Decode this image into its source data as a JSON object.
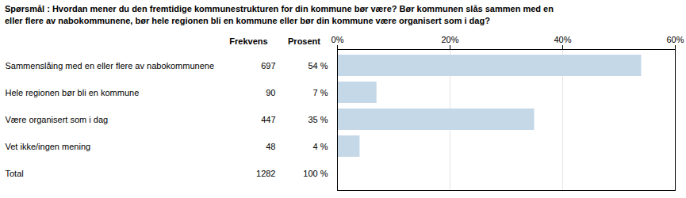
{
  "chart_data": {
    "type": "bar",
    "orientation": "horizontal",
    "title": "Spørsmål : Hvordan mener du den fremtidige kommunestrukturen for din kommune bør være? Bør kommunen slås sammen med en\neller flere av nabokommunene, bør hele regionen bli en kommune eller bør din kommune være organisert som i dag?",
    "categories": [
      "Sammenslåing med en eller flere av nabokommunene",
      "Hele regionen bør bli en kommune",
      "Være organisert som i dag",
      "Vet ikke/ingen mening"
    ],
    "values": [
      54,
      7,
      35,
      4
    ],
    "value_labels": [
      "54 %",
      "7 %",
      "35 %",
      "4 %"
    ],
    "frequencies": [
      697,
      90,
      447,
      48
    ],
    "column_headers": [
      "Frekvens",
      "Prosent"
    ],
    "total_label": "Total",
    "total_frequency": 1282,
    "total_value": 100,
    "total_value_label": "100 %",
    "color": "#c5d8e8",
    "xlim": [
      0,
      60
    ],
    "xticks": [
      {
        "value": 0,
        "label": "0%"
      },
      {
        "value": 20,
        "label": "20%"
      },
      {
        "value": 40,
        "label": "40%"
      },
      {
        "value": 60,
        "label": "60%"
      }
    ],
    "grid": true
  }
}
